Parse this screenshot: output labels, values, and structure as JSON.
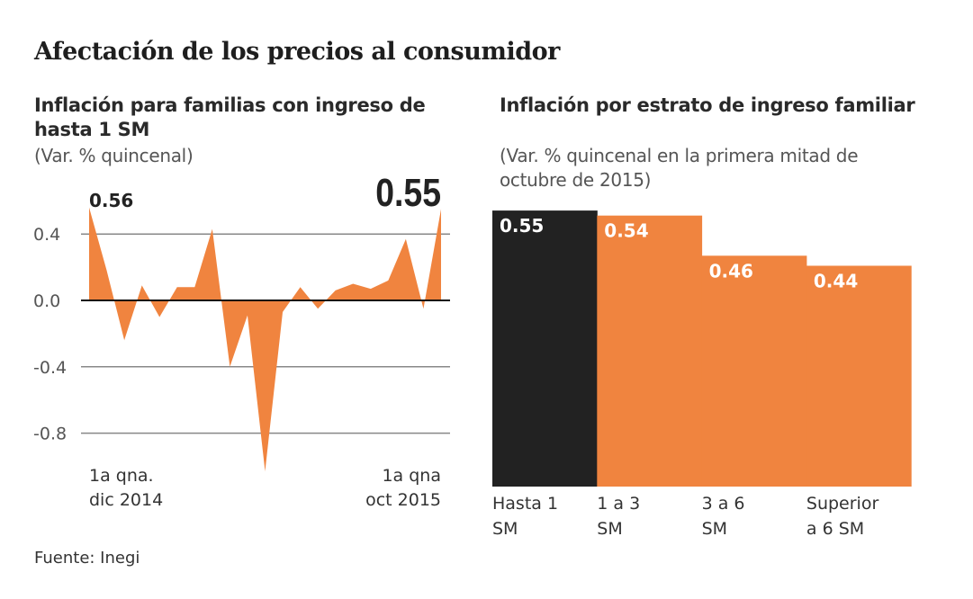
{
  "title": "Afectación de los precios al consumidor",
  "source": "Fuente: Inegi",
  "colors": {
    "orange": "#f0843f",
    "dark": "#222222",
    "grid": "#888888"
  },
  "chart_data": [
    {
      "type": "area",
      "title": "Inflación para familias con ingreso de hasta 1 SM",
      "subtitle": "(Var. % quincenal)",
      "ylim": [
        -1.05,
        0.6
      ],
      "yticks": [
        "0.4",
        "0.0",
        "-0.4",
        "-0.8"
      ],
      "ytick_values": [
        0.4,
        0.0,
        -0.4,
        -0.8
      ],
      "grid": true,
      "x_start_label": [
        "1a qna.",
        "dic 2014"
      ],
      "x_end_label": [
        "1a qna",
        "oct 2015"
      ],
      "values": [
        0.56,
        0.18,
        -0.24,
        0.09,
        -0.1,
        0.08,
        0.08,
        0.43,
        -0.4,
        -0.09,
        -1.03,
        -0.07,
        0.08,
        -0.05,
        0.06,
        0.1,
        0.07,
        0.12,
        0.37,
        -0.05,
        0.55
      ],
      "annotations": {
        "first": "0.56",
        "last": "0.55"
      }
    },
    {
      "type": "bar",
      "title": "Inflación por estrato de ingreso familiar",
      "subtitle": "(Var. % quincenal en la primera mitad de octubre de 2015)",
      "categories": [
        [
          "Hasta 1",
          "SM"
        ],
        [
          "1 a 3",
          "SM"
        ],
        [
          "3 a 6",
          "SM"
        ],
        [
          "Superior",
          "a 6 SM"
        ]
      ],
      "values": [
        0.55,
        0.54,
        0.46,
        0.44
      ],
      "labels": [
        "0.55",
        "0.54",
        "0.46",
        "0.44"
      ],
      "ylim": [
        0,
        0.55
      ]
    }
  ]
}
